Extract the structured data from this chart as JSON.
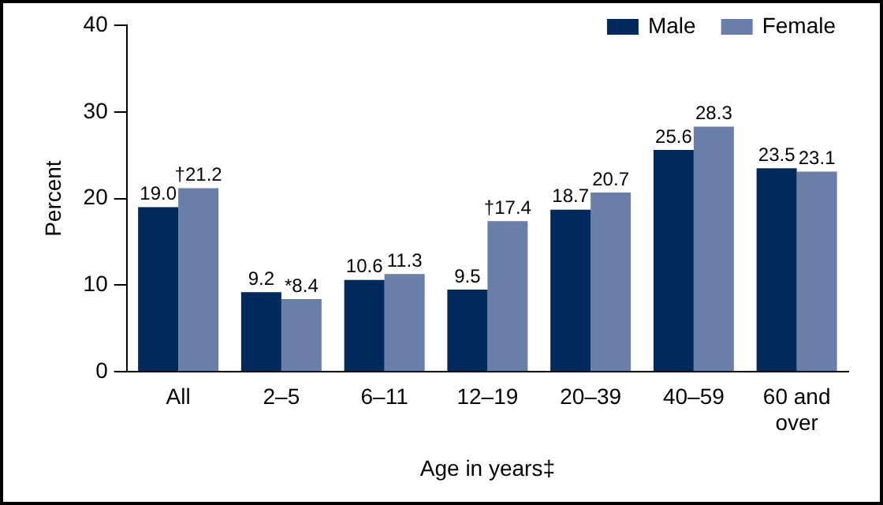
{
  "chart_data": {
    "type": "bar",
    "xlabel": "Age in years‡",
    "ylabel": "Percent",
    "categories": [
      "All",
      "2–5",
      "6–11",
      "12–19",
      "20–39",
      "40–59",
      "60 and over"
    ],
    "series": [
      {
        "name": "Male",
        "color": "#002a5c",
        "values": [
          19.0,
          9.2,
          10.6,
          9.5,
          18.7,
          25.6,
          23.5
        ],
        "value_labels": [
          "19.0",
          "9.2",
          "10.6",
          "9.5",
          "18.7",
          "25.6",
          "23.5"
        ]
      },
      {
        "name": "Female",
        "color": "#6a7fa8",
        "values": [
          21.2,
          8.4,
          11.3,
          17.4,
          20.7,
          28.3,
          23.1
        ],
        "value_labels": [
          "†21.2",
          "*8.4",
          "11.3",
          "†17.4",
          "20.7",
          "28.3",
          "23.1"
        ]
      }
    ],
    "ylim": [
      0,
      40
    ],
    "yticks": [
      0,
      10,
      20,
      30,
      40
    ],
    "grid": false,
    "legend": "top right"
  }
}
